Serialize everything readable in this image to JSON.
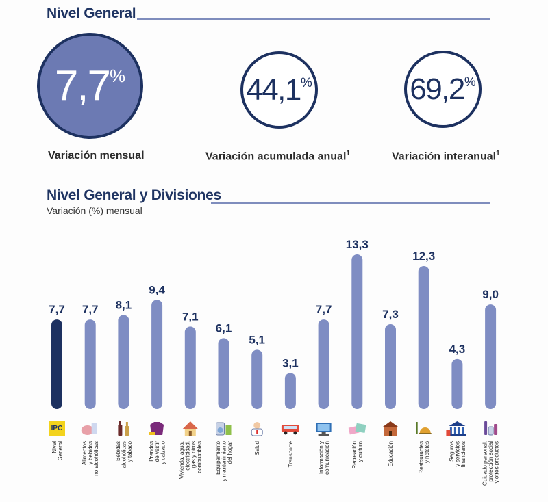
{
  "nivel_general": {
    "title": "Nivel General",
    "kpis": [
      {
        "value": "7,7",
        "unit": "%",
        "label": "Variación mensual",
        "note": ""
      },
      {
        "value": "44,1",
        "unit": "%",
        "label": "Variación acumulada anual",
        "note": "1"
      },
      {
        "value": "69,2",
        "unit": "%",
        "label": "Variación interanual",
        "note": "1"
      }
    ]
  },
  "divisiones": {
    "title": "Nivel General y Divisiones",
    "subtitle": "Variación (%) mensual"
  },
  "colors": {
    "highlight_bar": "#1d3160",
    "bar": "#7f8dc3",
    "accent": "#1f3462"
  },
  "chart_data": {
    "type": "bar",
    "categories": [
      [
        "Nivel",
        "General"
      ],
      [
        "Alimentos",
        "y bebidas",
        "no alcohólicas"
      ],
      [
        "Bebidas",
        "alcohólicas",
        "y tabaco"
      ],
      [
        "Prendas",
        "de vestir",
        "y calzado"
      ],
      [
        "Vivienda, agua,",
        "electricidad,",
        "gas y otros",
        "combustibles"
      ],
      [
        "Equipamiento",
        "y mantenimiento",
        "del hogar"
      ],
      [
        "Salud"
      ],
      [
        "Transporte"
      ],
      [
        "Información y",
        "comunicación"
      ],
      [
        "Recreación",
        "y cultura"
      ],
      [
        "Educación"
      ],
      [
        "Restaurantes",
        "y hoteles"
      ],
      [
        "Seguros",
        "y servicios",
        "financieros"
      ],
      [
        "Cuidado personal,",
        "protección social",
        "y otros productos"
      ]
    ],
    "values": [
      7.7,
      7.7,
      8.1,
      9.4,
      7.1,
      6.1,
      5.1,
      3.1,
      7.7,
      13.3,
      7.3,
      12.3,
      4.3,
      9.0
    ],
    "labels": [
      "7,7",
      "7,7",
      "8,1",
      "9,4",
      "7,1",
      "6,1",
      "5,1",
      "3,1",
      "7,7",
      "13,3",
      "7,3",
      "12,3",
      "4,3",
      "9,0"
    ],
    "icons": [
      "ipc-logo-icon",
      "food-icon",
      "bottles-icon",
      "clothing-icon",
      "house-icon",
      "appliances-icon",
      "doctor-icon",
      "bus-icon",
      "computer-icon",
      "leisure-icon",
      "school-icon",
      "restaurant-icon",
      "bank-icon",
      "personal-care-icon"
    ],
    "icon_text": "IPC",
    "highlight_index": 0,
    "grid": false,
    "legend": "none"
  }
}
